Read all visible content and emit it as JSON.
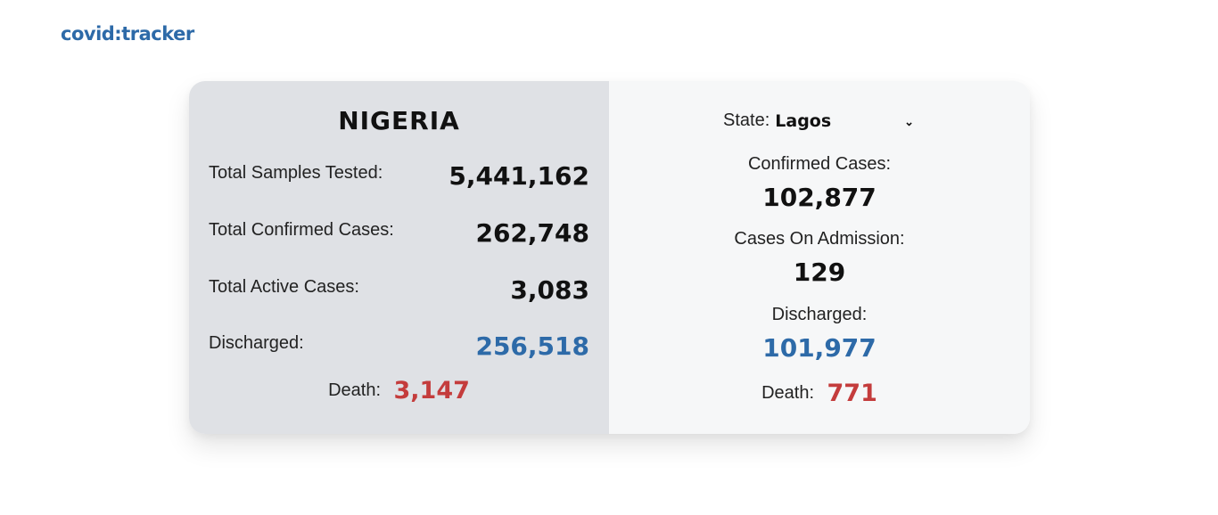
{
  "app": {
    "logo": "covid:tracker"
  },
  "national": {
    "title": "NIGERIA",
    "stats": [
      {
        "label": "Total Samples Tested:",
        "value": "5,441,162"
      },
      {
        "label": "Total Confirmed Cases:",
        "value": "262,748"
      },
      {
        "label": "Total Active Cases:",
        "value": "3,083"
      },
      {
        "label": "Discharged:",
        "value": "256,518"
      }
    ],
    "death_label": "Death:",
    "death_value": "3,147"
  },
  "state": {
    "selector_label": "State:",
    "selected": "Lagos",
    "confirmed_label": "Confirmed Cases:",
    "confirmed_value": "102,877",
    "admission_label": "Cases On Admission:",
    "admission_value": "129",
    "discharged_label": "Discharged:",
    "discharged_value": "101,977",
    "death_label": "Death:",
    "death_value": "771"
  },
  "colors": {
    "brand": "#2d6aa8",
    "discharged": "#2d6aa8",
    "death": "#c43c3c",
    "left_panel": "#dfe1e5",
    "right_panel": "#f6f7f8"
  }
}
